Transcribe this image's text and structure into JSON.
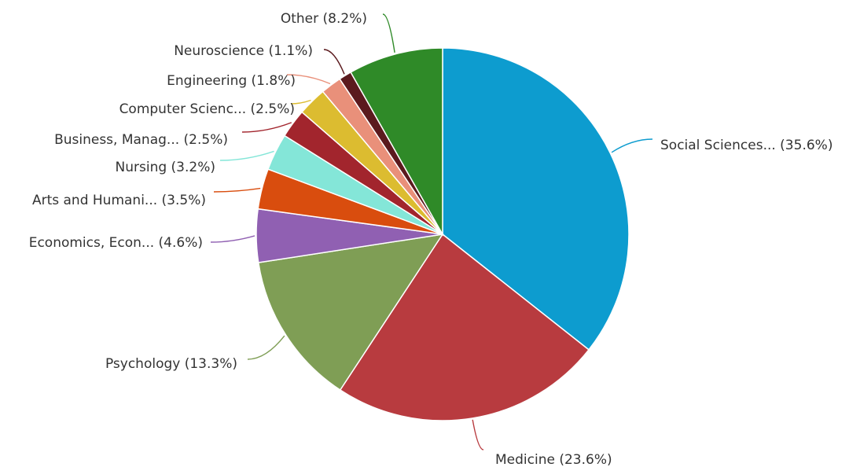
{
  "chart_data": {
    "type": "pie",
    "slices": [
      {
        "name": "Social Sciences...",
        "value": 35.6,
        "label": "Social Sciences... (35.6%)",
        "color": "#0d9ccf"
      },
      {
        "name": "Medicine",
        "value": 23.6,
        "label": "Medicine (23.6%)",
        "color": "#b83b3f"
      },
      {
        "name": "Psychology",
        "value": 13.3,
        "label": "Psychology (13.3%)",
        "color": "#7f9e55"
      },
      {
        "name": "Economics, Econ...",
        "value": 4.6,
        "label": "Economics, Econ... (4.6%)",
        "color": "#9060b2"
      },
      {
        "name": "Arts and Humani...",
        "value": 3.5,
        "label": "Arts and Humani... (3.5%)",
        "color": "#d94d0e"
      },
      {
        "name": "Nursing",
        "value": 3.2,
        "label": "Nursing (3.2%)",
        "color": "#84e6d8"
      },
      {
        "name": "Business, Manag...",
        "value": 2.5,
        "label": "Business, Manag... (2.5%)",
        "color": "#a2252d"
      },
      {
        "name": "Computer Scienc...",
        "value": 2.5,
        "label": "Computer Scienc... (2.5%)",
        "color": "#dcbc30"
      },
      {
        "name": "Engineering",
        "value": 1.8,
        "label": "Engineering (1.8%)",
        "color": "#e9907a"
      },
      {
        "name": "Neuroscience",
        "value": 1.1,
        "label": "Neuroscience (1.1%)",
        "color": "#5b1a1e"
      },
      {
        "name": "Other",
        "value": 8.2,
        "label": "Other (8.2%)",
        "color": "#2f8a28"
      }
    ]
  }
}
